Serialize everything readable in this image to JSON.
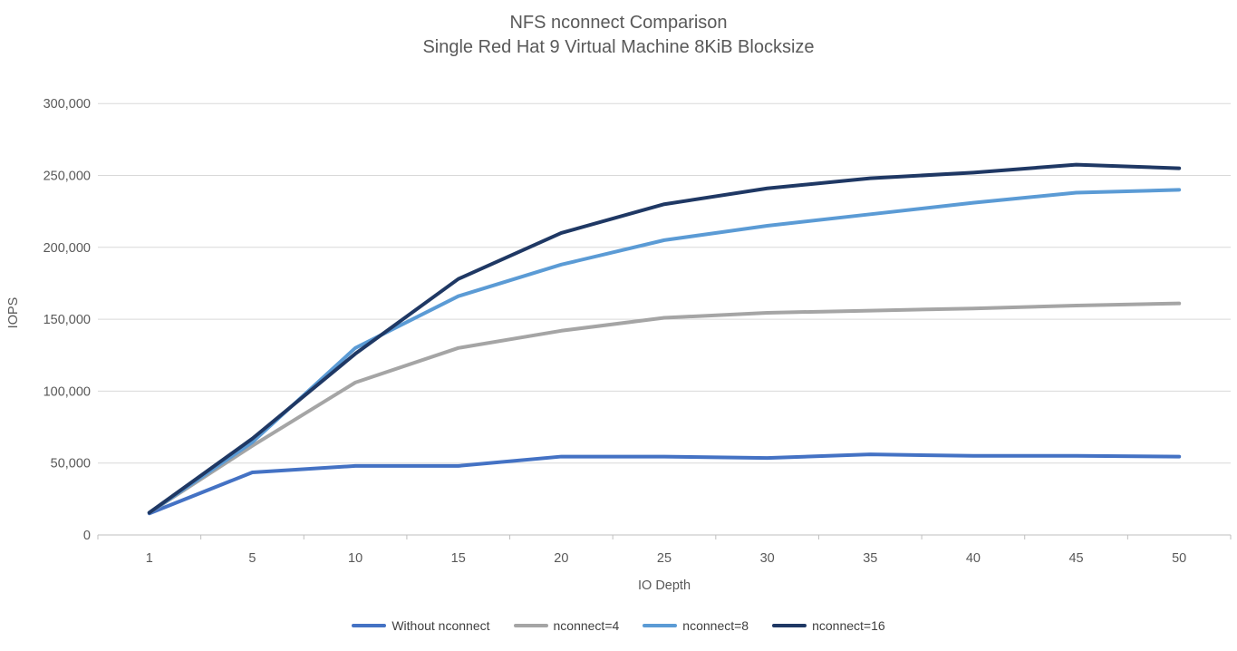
{
  "chart": {
    "title_line1": "NFS nconnect Comparison",
    "title_line2": "Single Red Hat 9 Virtual Machine 8KiB Blocksize",
    "axis_label_color": "#595959",
    "gridline_color": "#d9d9d9",
    "axis_line_color": "#bfbfbf",
    "background_color": "#ffffff"
  },
  "chart_data": {
    "type": "line",
    "title": "NFS nconnect Comparison",
    "subtitle": "Single Red Hat 9 Virtual Machine 8KiB Blocksize",
    "xlabel": "IO Depth",
    "ylabel": "IOPS",
    "categories": [
      1,
      5,
      10,
      15,
      20,
      25,
      30,
      35,
      40,
      45,
      50
    ],
    "y_ticks": [
      0,
      50000,
      100000,
      150000,
      200000,
      250000,
      300000
    ],
    "ylim": [
      0,
      300000
    ],
    "grid": "horizontal",
    "legend_position": "bottom",
    "series": [
      {
        "name": "Without nconnect",
        "color": "#4472C4",
        "values": [
          15000,
          43500,
          48000,
          48000,
          54500,
          54500,
          53500,
          56000,
          55000,
          55000,
          54500
        ]
      },
      {
        "name": "nconnect=4",
        "color": "#A5A5A5",
        "values": [
          15500,
          62000,
          106000,
          130000,
          142000,
          151000,
          154500,
          156000,
          157500,
          159500,
          161000
        ]
      },
      {
        "name": "nconnect=8",
        "color": "#5B9BD5",
        "values": [
          15500,
          64500,
          130000,
          166000,
          188000,
          205000,
          215000,
          223000,
          231000,
          238000,
          240000
        ]
      },
      {
        "name": "nconnect=16",
        "color": "#1F3864",
        "values": [
          15500,
          67000,
          126000,
          178000,
          210000,
          230000,
          241000,
          248000,
          252000,
          257500,
          255000
        ]
      }
    ]
  }
}
